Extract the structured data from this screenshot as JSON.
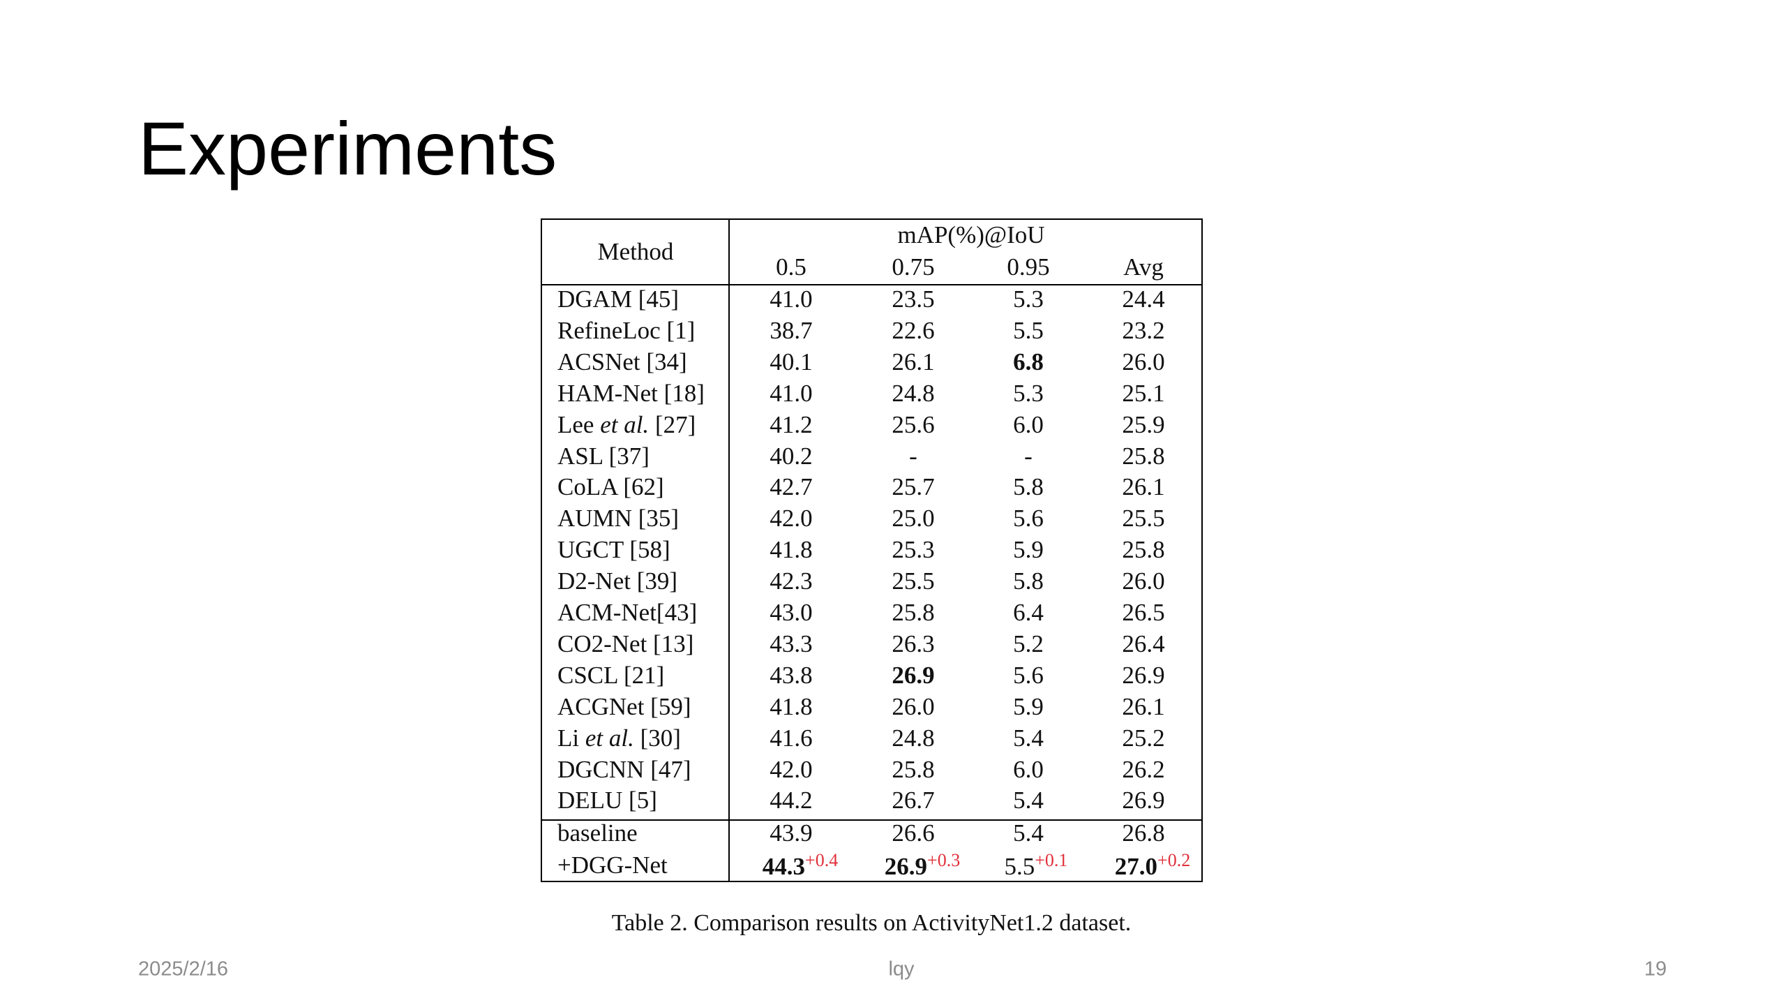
{
  "title": "Experiments",
  "table": {
    "group_header": "mAP(%)@IoU",
    "columns": [
      "Method",
      "0.5",
      "0.75",
      "0.95",
      "Avg"
    ],
    "rows": [
      {
        "method": [
          {
            "text": "DGAM [45]"
          }
        ],
        "cells": [
          "41.0",
          "23.5",
          "5.3",
          "24.4"
        ]
      },
      {
        "method": [
          {
            "text": "RefineLoc [1]"
          }
        ],
        "cells": [
          "38.7",
          "22.6",
          "5.5",
          "23.2"
        ]
      },
      {
        "method": [
          {
            "text": "ACSNet [34]"
          }
        ],
        "cells": [
          "40.1",
          "26.1",
          {
            "text": "6.8",
            "bold": true
          },
          "26.0"
        ]
      },
      {
        "method": [
          {
            "text": "HAM-Net [18]"
          }
        ],
        "cells": [
          "41.0",
          "24.8",
          "5.3",
          "25.1"
        ]
      },
      {
        "method": [
          {
            "text": "Lee "
          },
          {
            "text": "et al.",
            "italic": true
          },
          {
            "text": " [27]"
          }
        ],
        "cells": [
          "41.2",
          "25.6",
          "6.0",
          "25.9"
        ]
      },
      {
        "method": [
          {
            "text": "ASL [37]"
          }
        ],
        "cells": [
          "40.2",
          "-",
          "-",
          "25.8"
        ]
      },
      {
        "method": [
          {
            "text": "CoLA [62]"
          }
        ],
        "cells": [
          "42.7",
          "25.7",
          "5.8",
          "26.1"
        ]
      },
      {
        "method": [
          {
            "text": "AUMN [35]"
          }
        ],
        "cells": [
          "42.0",
          "25.0",
          "5.6",
          "25.5"
        ]
      },
      {
        "method": [
          {
            "text": "UGCT [58]"
          }
        ],
        "cells": [
          "41.8",
          "25.3",
          "5.9",
          "25.8"
        ]
      },
      {
        "method": [
          {
            "text": "D2-Net [39]"
          }
        ],
        "cells": [
          "42.3",
          "25.5",
          "5.8",
          "26.0"
        ]
      },
      {
        "method": [
          {
            "text": "ACM-Net[43]"
          }
        ],
        "cells": [
          "43.0",
          "25.8",
          "6.4",
          "26.5"
        ]
      },
      {
        "method": [
          {
            "text": "CO2-Net [13]"
          }
        ],
        "cells": [
          "43.3",
          "26.3",
          "5.2",
          "26.4"
        ]
      },
      {
        "method": [
          {
            "text": "CSCL [21]"
          }
        ],
        "cells": [
          "43.8",
          {
            "text": "26.9",
            "bold": true
          },
          "5.6",
          "26.9"
        ]
      },
      {
        "method": [
          {
            "text": "ACGNet [59]"
          }
        ],
        "cells": [
          "41.8",
          "26.0",
          "5.9",
          "26.1"
        ]
      },
      {
        "method": [
          {
            "text": "Li "
          },
          {
            "text": "et al.",
            "italic": true
          },
          {
            "text": " [30]"
          }
        ],
        "cells": [
          "41.6",
          "24.8",
          "5.4",
          "25.2"
        ]
      },
      {
        "method": [
          {
            "text": "DGCNN [47]"
          }
        ],
        "cells": [
          "42.0",
          "25.8",
          "6.0",
          "26.2"
        ]
      },
      {
        "method": [
          {
            "text": "DELU [5]"
          }
        ],
        "cells": [
          "44.2",
          "26.7",
          "5.4",
          "26.9"
        ]
      }
    ],
    "bottom_rows": [
      {
        "method": [
          {
            "text": "baseline"
          }
        ],
        "cells": [
          "43.9",
          "26.6",
          "5.4",
          "26.8"
        ]
      },
      {
        "method": [
          {
            "text": "+DGG-Net"
          }
        ],
        "cells": [
          {
            "text": "44.3",
            "bold": true,
            "delta": "+0.4"
          },
          {
            "text": "26.9",
            "bold": true,
            "delta": "+0.3"
          },
          {
            "text": "5.5",
            "delta": "+0.1"
          },
          {
            "text": "27.0",
            "bold": true,
            "delta": "+0.2"
          }
        ]
      }
    ],
    "caption": "Table 2. Comparison results on ActivityNet1.2 dataset."
  },
  "footer": {
    "date": "2025/2/16",
    "author": "lqy",
    "page": "19"
  }
}
